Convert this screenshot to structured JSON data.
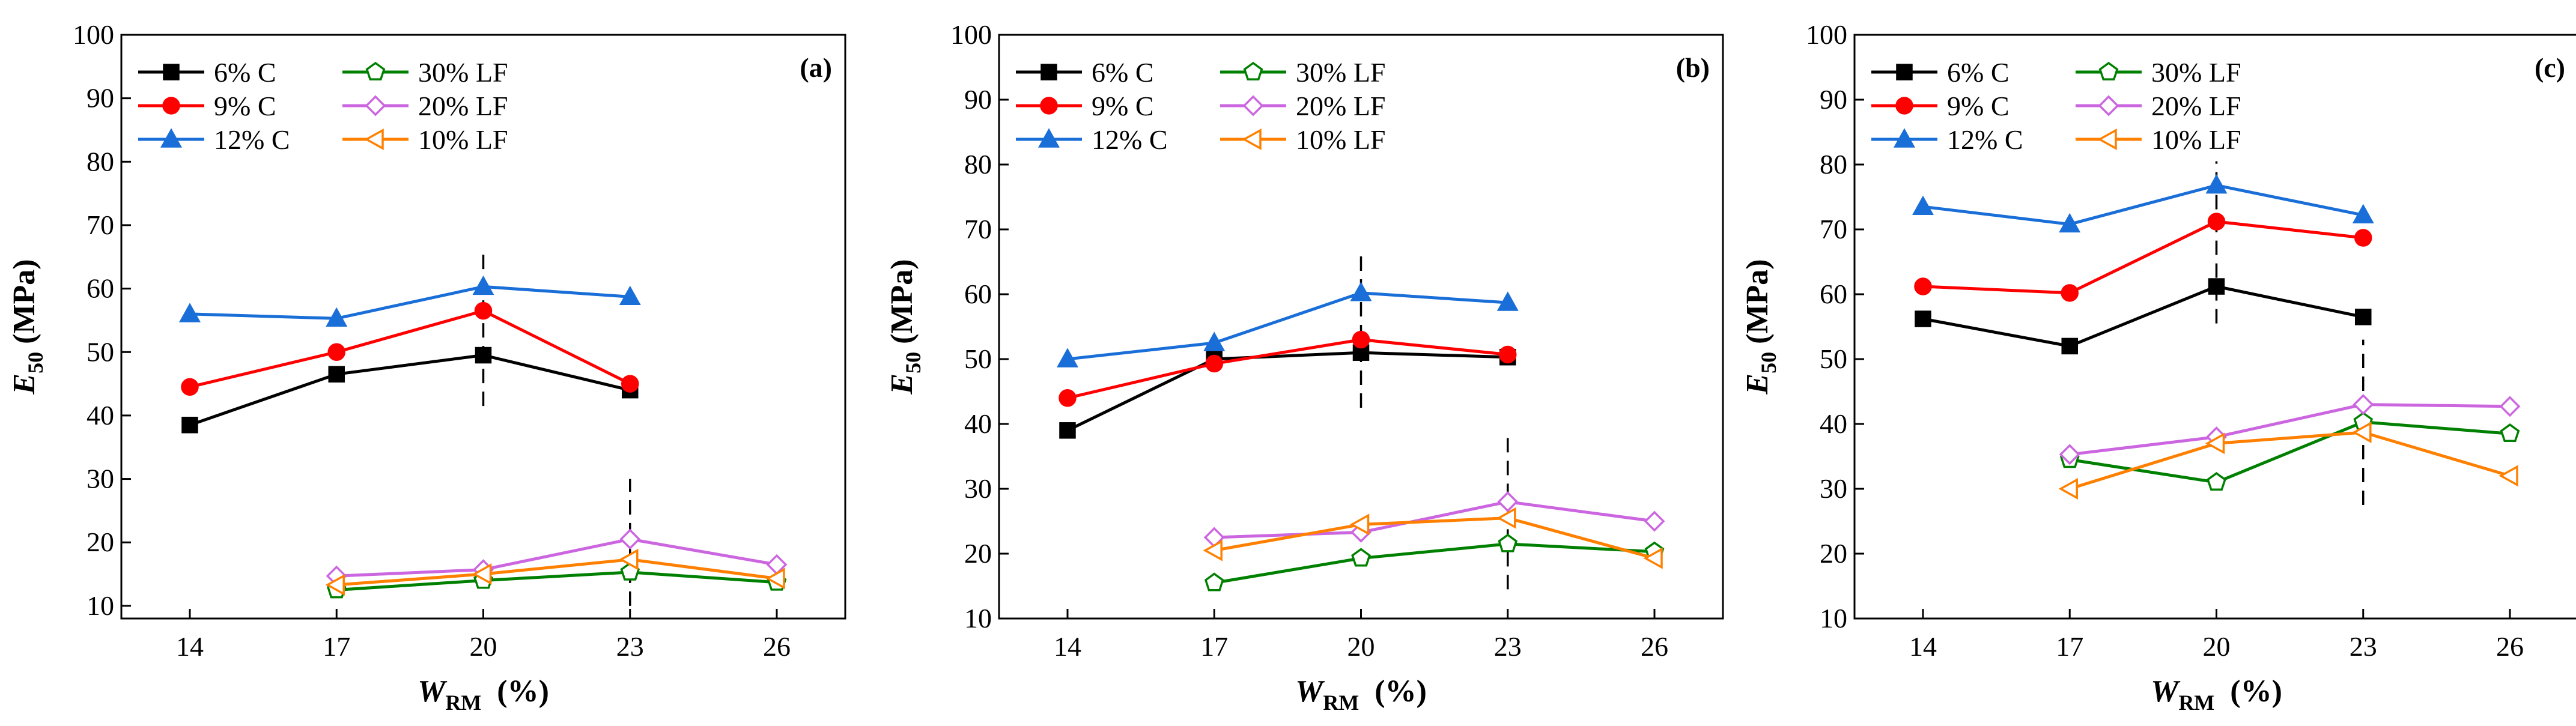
{
  "figure": {
    "xlabel": {
      "main": "W",
      "sub": "RM",
      "unit": "(%)"
    },
    "ylabel": {
      "main": "E",
      "sub": "50",
      "unit": "(MPa)"
    }
  },
  "chart_data": [
    {
      "type": "line",
      "panel_label": "(a)",
      "x_ticks": [
        14,
        17,
        20,
        23,
        26
      ],
      "y_ticks": [
        10,
        20,
        30,
        40,
        50,
        60,
        70,
        80,
        90,
        100
      ],
      "xlim": [
        12.6,
        27.4
      ],
      "ylim": [
        8,
        100
      ],
      "grid": false,
      "legend_position": "top-left",
      "series": [
        {
          "name": "6% C",
          "color": "#000000",
          "marker": "square",
          "filled": true,
          "x": [
            14,
            17,
            20,
            23
          ],
          "y": [
            38.5,
            46.5,
            49.5,
            44
          ]
        },
        {
          "name": "9% C",
          "color": "#ff0000",
          "marker": "circle",
          "filled": true,
          "x": [
            14,
            17,
            20,
            23
          ],
          "y": [
            44.5,
            50,
            56.5,
            45
          ]
        },
        {
          "name": "12% C",
          "color": "#1a6ed8",
          "marker": "triangle-up",
          "filled": true,
          "x": [
            14,
            17,
            20,
            23
          ],
          "y": [
            56,
            55.3,
            60.3,
            58.7
          ]
        },
        {
          "name": "30% LF",
          "color": "#008000",
          "marker": "pentagon",
          "filled": false,
          "x": [
            17,
            20,
            23,
            26
          ],
          "y": [
            12.5,
            14,
            15.3,
            13.7
          ]
        },
        {
          "name": "20% LF",
          "color": "#cc66e0",
          "marker": "diamond",
          "filled": false,
          "x": [
            17,
            20,
            23,
            26
          ],
          "y": [
            14.7,
            15.7,
            20.5,
            16.5
          ]
        },
        {
          "name": "10% LF",
          "color": "#ff8000",
          "marker": "triangle-left",
          "filled": false,
          "x": [
            17,
            20,
            23,
            26
          ],
          "y": [
            13.3,
            15,
            17.3,
            14.3
          ]
        }
      ],
      "reference_lines": [
        {
          "x": 20,
          "y_range": [
            41.5,
            65.5
          ]
        },
        {
          "x": 23,
          "y_range": [
            10,
            30
          ]
        }
      ]
    },
    {
      "type": "line",
      "panel_label": "(b)",
      "x_ticks": [
        14,
        17,
        20,
        23,
        26
      ],
      "y_ticks": [
        10,
        20,
        30,
        40,
        50,
        60,
        70,
        80,
        90,
        100
      ],
      "xlim": [
        12.6,
        27.4
      ],
      "ylim": [
        10,
        100
      ],
      "grid": false,
      "legend_position": "top-left",
      "series": [
        {
          "name": "6% C",
          "color": "#000000",
          "marker": "square",
          "filled": true,
          "x": [
            14,
            17,
            20,
            23
          ],
          "y": [
            39,
            50,
            51,
            50.3
          ]
        },
        {
          "name": "9% C",
          "color": "#ff0000",
          "marker": "circle",
          "filled": true,
          "x": [
            14,
            17,
            20,
            23
          ],
          "y": [
            44,
            49.3,
            53,
            50.7
          ]
        },
        {
          "name": "12% C",
          "color": "#1a6ed8",
          "marker": "triangle-up",
          "filled": true,
          "x": [
            14,
            17,
            20,
            23
          ],
          "y": [
            50,
            52.5,
            60.2,
            58.7
          ]
        },
        {
          "name": "30% LF",
          "color": "#008000",
          "marker": "pentagon",
          "filled": false,
          "x": [
            17,
            20,
            23,
            26
          ],
          "y": [
            15.5,
            19.3,
            21.5,
            20.3
          ]
        },
        {
          "name": "20% LF",
          "color": "#cc66e0",
          "marker": "diamond",
          "filled": false,
          "x": [
            17,
            20,
            23,
            26
          ],
          "y": [
            22.5,
            23.3,
            28,
            25
          ]
        },
        {
          "name": "10% LF",
          "color": "#ff8000",
          "marker": "triangle-left",
          "filled": false,
          "x": [
            17,
            20,
            23,
            26
          ],
          "y": [
            20.5,
            24.5,
            25.5,
            19.3
          ]
        }
      ],
      "reference_lines": [
        {
          "x": 20,
          "y_range": [
            42.5,
            66.5
          ]
        },
        {
          "x": 23,
          "y_range": [
            14.5,
            38.5
          ]
        }
      ]
    },
    {
      "type": "line",
      "panel_label": "(c)",
      "x_ticks": [
        14,
        17,
        20,
        23,
        26
      ],
      "y_ticks": [
        10,
        20,
        30,
        40,
        50,
        60,
        70,
        80,
        90,
        100
      ],
      "xlim": [
        12.6,
        27.4
      ],
      "ylim": [
        10,
        100
      ],
      "grid": false,
      "legend_position": "top-left",
      "series": [
        {
          "name": "6% C",
          "color": "#000000",
          "marker": "square",
          "filled": true,
          "x": [
            14,
            17,
            20,
            23
          ],
          "y": [
            56.2,
            52,
            61.2,
            56.5
          ]
        },
        {
          "name": "9% C",
          "color": "#ff0000",
          "marker": "circle",
          "filled": true,
          "x": [
            14,
            17,
            20,
            23
          ],
          "y": [
            61.2,
            60.2,
            71.2,
            68.7
          ]
        },
        {
          "name": "12% C",
          "color": "#1a6ed8",
          "marker": "triangle-up",
          "filled": true,
          "x": [
            14,
            17,
            20,
            23
          ],
          "y": [
            73.5,
            70.8,
            76.8,
            72.2
          ]
        },
        {
          "name": "30% LF",
          "color": "#008000",
          "marker": "pentagon",
          "filled": false,
          "x": [
            17,
            20,
            23,
            26
          ],
          "y": [
            34.5,
            31,
            40.3,
            38.5
          ]
        },
        {
          "name": "20% LF",
          "color": "#cc66e0",
          "marker": "diamond",
          "filled": false,
          "x": [
            17,
            20,
            23,
            26
          ],
          "y": [
            35.3,
            38,
            43,
            42.7
          ]
        },
        {
          "name": "10% LF",
          "color": "#ff8000",
          "marker": "triangle-left",
          "filled": false,
          "x": [
            17,
            20,
            23,
            26
          ],
          "y": [
            30,
            37,
            38.7,
            32
          ]
        }
      ],
      "reference_lines": [
        {
          "x": 20,
          "y_range": [
            55.5,
            80.5
          ]
        },
        {
          "x": 23,
          "y_range": [
            27.5,
            53
          ]
        }
      ]
    }
  ]
}
